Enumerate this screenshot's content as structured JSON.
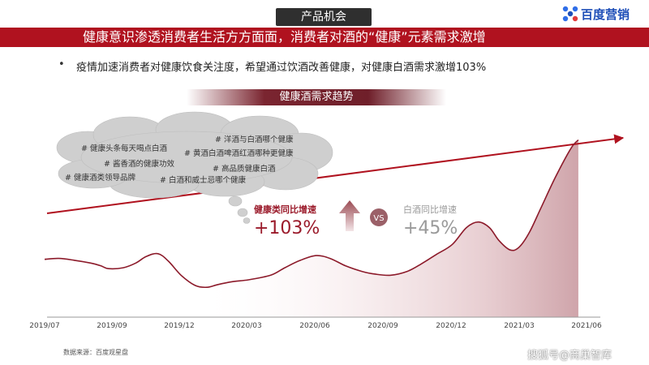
{
  "section_tag": "产品机会",
  "brand": {
    "name": "百度营销",
    "color": "#1f4fb8"
  },
  "headline": "健康意识渗透消费者生活方方面面，消费者对酒的“健康”元素需求激增",
  "bullet": {
    "marker": "•",
    "text": "疫情加速消费者对健康饮食关注度，希望通过饮酒改善健康，对健康白酒需求激增103%"
  },
  "trend_banner": "健康酒需求趋势",
  "hashtags": [
    "# 洋酒与白酒哪个健康",
    "# 健康头条每天喝点白酒",
    "# 黄酒白酒啤酒红酒哪种更健康",
    "# 酱香酒的健康功效",
    "# 高品质健康白酒",
    "# 健康酒类领导品牌",
    "# 白酒和威士忌哪个健康"
  ],
  "comparison": {
    "left_label": "健康类同比增速",
    "left_value": "+103%",
    "vs": "VS",
    "right_label": "白酒同比增速",
    "right_value": "+45%"
  },
  "colors": {
    "accent": "#b0121f",
    "line": "#8c1a2a",
    "muted": "#9a9a9a",
    "dark": "#2f2f2f"
  },
  "chart_data": {
    "type": "line",
    "x_ticks": [
      "2019/07",
      "2019/09",
      "2019/12",
      "2020/03",
      "2020/06",
      "2020/09",
      "2020/12",
      "2021/03",
      "2021/06"
    ],
    "x_range": [
      "2019-07-01",
      "2021-07-01"
    ],
    "series": [
      {
        "points": [
          [
            "2019-07-01",
            62
          ],
          [
            "2019-07-20",
            63
          ],
          [
            "2019-08-10",
            61
          ],
          [
            "2019-09-01",
            58
          ],
          [
            "2019-09-15",
            55
          ],
          [
            "2019-09-25",
            52
          ],
          [
            "2019-10-15",
            53
          ],
          [
            "2019-11-01",
            58
          ],
          [
            "2019-11-15",
            65
          ],
          [
            "2019-12-01",
            68
          ],
          [
            "2019-12-15",
            60
          ],
          [
            "2020-01-01",
            45
          ],
          [
            "2020-01-20",
            34
          ],
          [
            "2020-02-05",
            32
          ],
          [
            "2020-02-20",
            35
          ],
          [
            "2020-03-10",
            38
          ],
          [
            "2020-04-01",
            40
          ],
          [
            "2020-05-01",
            45
          ],
          [
            "2020-05-20",
            53
          ],
          [
            "2020-06-10",
            61
          ],
          [
            "2020-07-01",
            66
          ],
          [
            "2020-07-20",
            63
          ],
          [
            "2020-08-10",
            55
          ],
          [
            "2020-09-01",
            49
          ],
          [
            "2020-09-20",
            46
          ],
          [
            "2020-10-10",
            45
          ],
          [
            "2020-11-01",
            49
          ],
          [
            "2020-11-20",
            57
          ],
          [
            "2020-12-10",
            67
          ],
          [
            "2021-01-01",
            78
          ],
          [
            "2021-01-20",
            96
          ],
          [
            "2021-02-05",
            102
          ],
          [
            "2021-02-20",
            96
          ],
          [
            "2021-03-05",
            82
          ],
          [
            "2021-03-20",
            72
          ],
          [
            "2021-04-01",
            75
          ],
          [
            "2021-04-15",
            91
          ],
          [
            "2021-05-01",
            118
          ],
          [
            "2021-05-20",
            150
          ],
          [
            "2021-06-10",
            181
          ],
          [
            "2021-06-20",
            190
          ]
        ]
      }
    ],
    "trend_arrow": "up",
    "source": "数据来源：百度观星盘"
  },
  "watermark": "搜狐号@商巢智库"
}
